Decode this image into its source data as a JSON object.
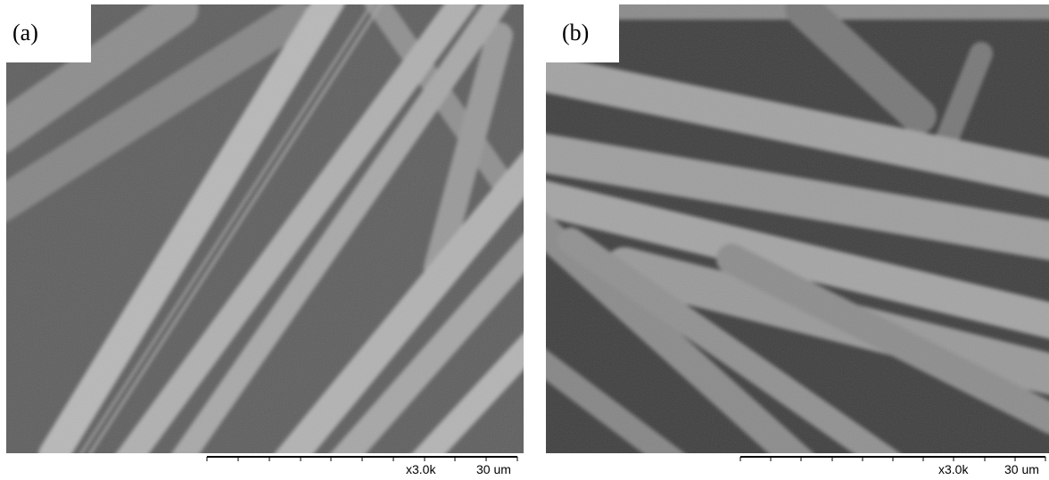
{
  "panels": [
    {
      "label": "(a)",
      "magnification": "x3.0k",
      "scale": "30 um"
    },
    {
      "label": "(b)",
      "magnification": "x3.0k",
      "scale": "30 um"
    }
  ]
}
